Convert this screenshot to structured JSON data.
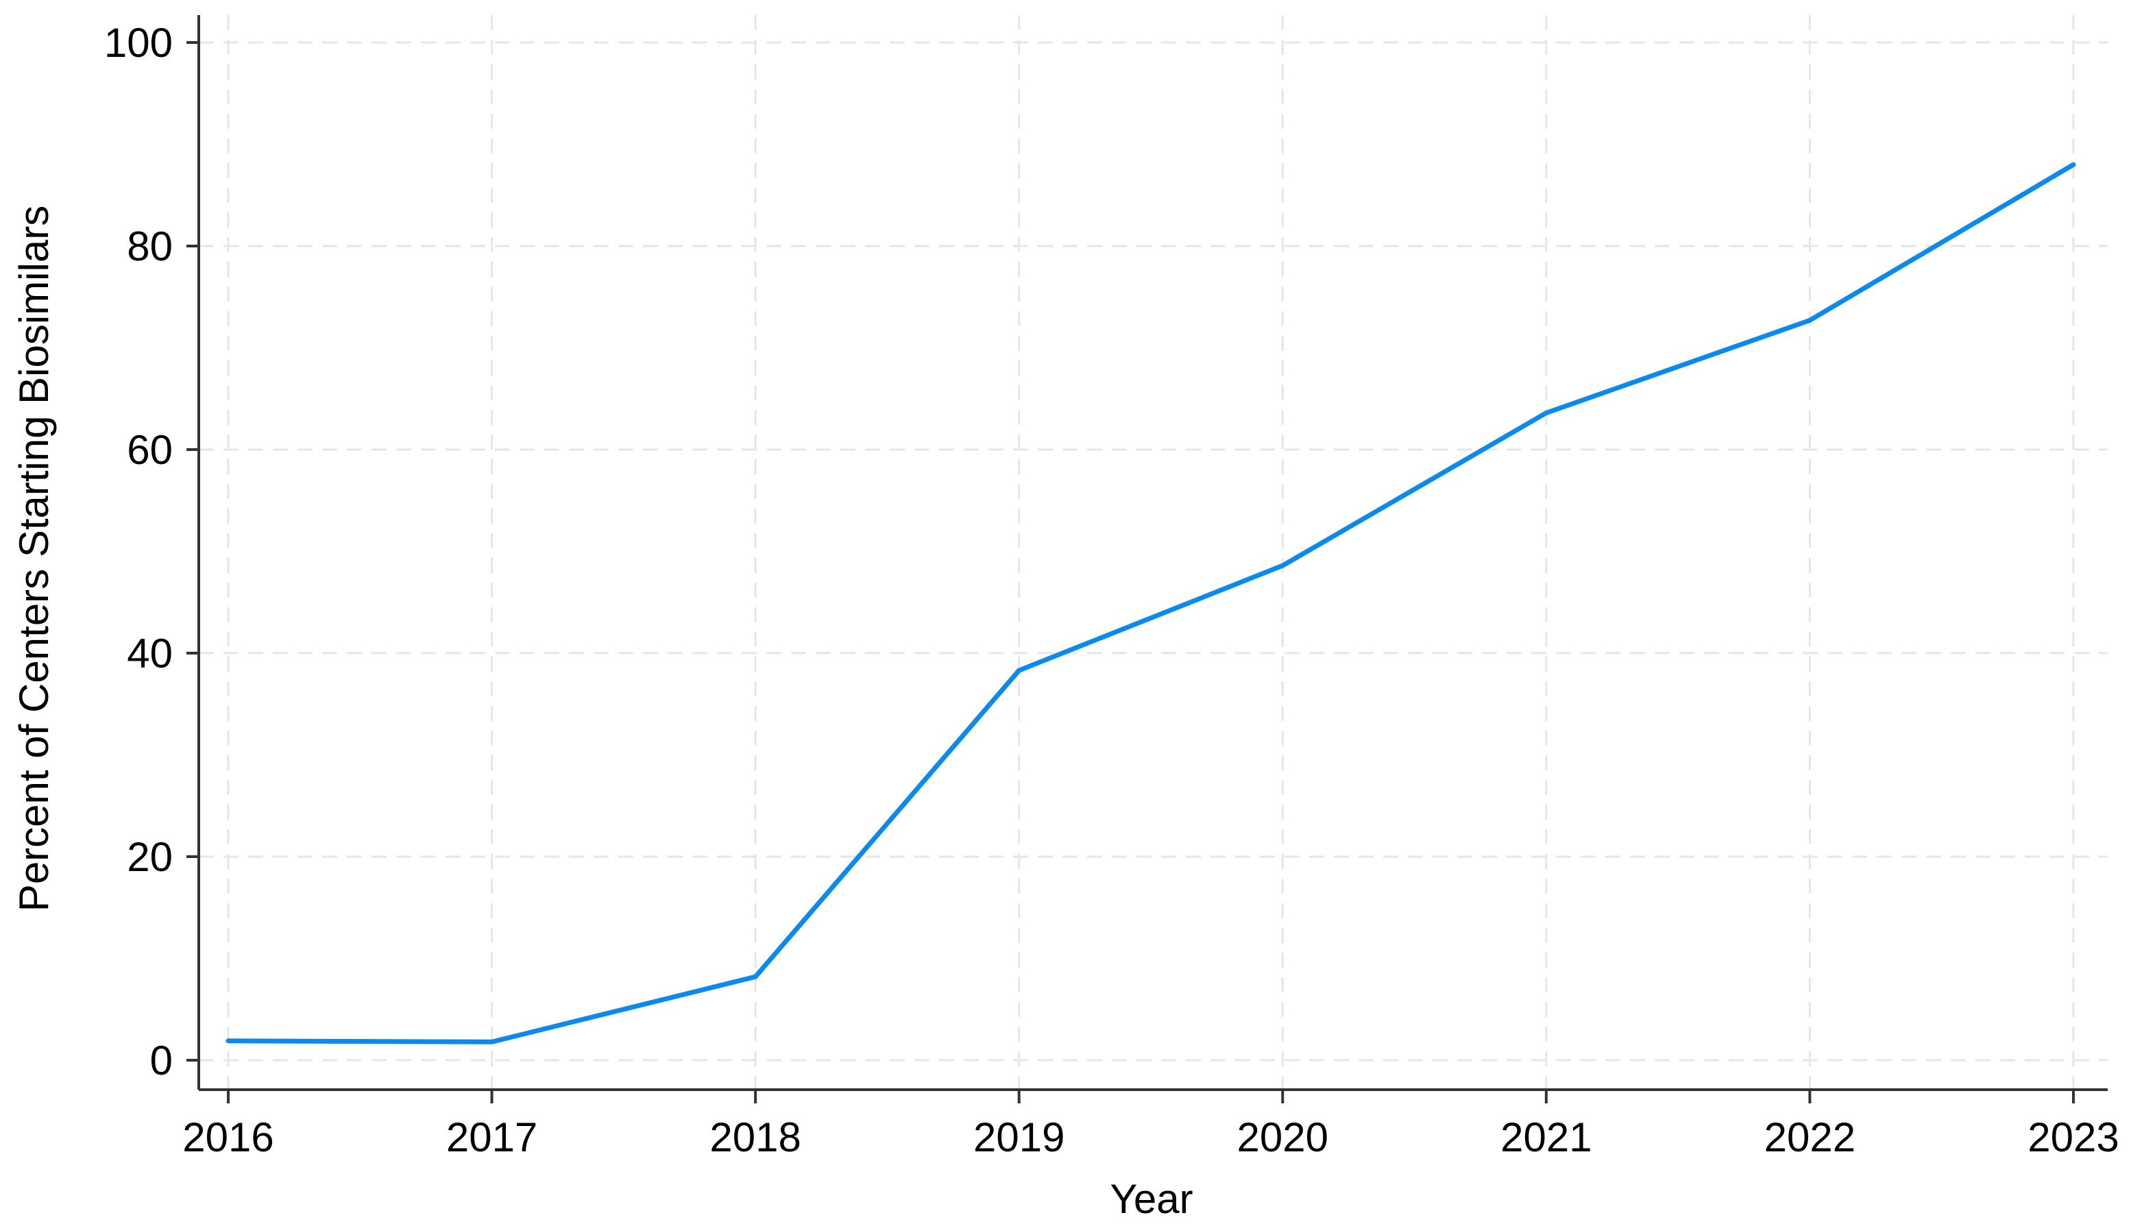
{
  "chart_data": {
    "type": "line",
    "title": "",
    "xlabel": "Year",
    "ylabel": "Percent of Centers Starting Biosimilars",
    "x": [
      "2016",
      "2017",
      "2018",
      "2019",
      "2020",
      "2021",
      "2022",
      "2023"
    ],
    "yticks": [
      "0",
      "20",
      "40",
      "60",
      "80",
      "100"
    ],
    "ylim": [
      0,
      100
    ],
    "grid": true,
    "series": [
      {
        "values": [
          1.9,
          1.8,
          8.2,
          38.3,
          48.6,
          63.6,
          72.7,
          88.0
        ]
      }
    ],
    "colors": {
      "line": "#0a8af0",
      "axis": "#333333",
      "grid": "#e6e6e6",
      "text": "#000000"
    }
  }
}
